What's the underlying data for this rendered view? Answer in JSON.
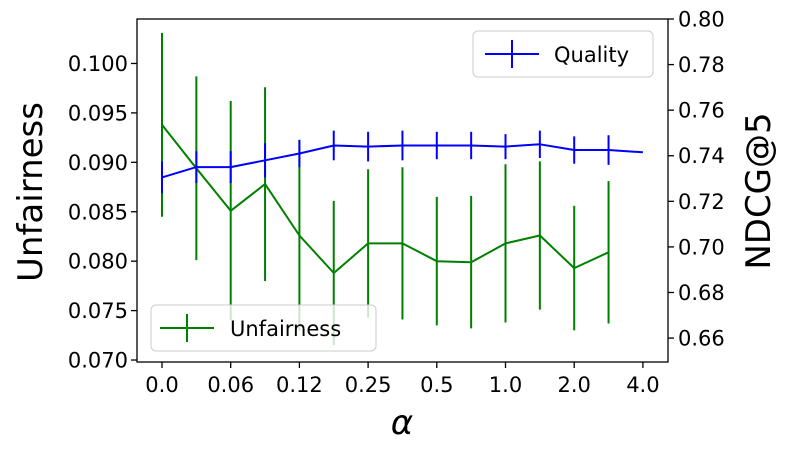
{
  "chart_data": {
    "type": "line",
    "x_categories": [
      "0.0",
      "",
      "0.06",
      "",
      "0.12",
      "",
      "0.25",
      "",
      "0.5",
      "",
      "1.0",
      "",
      "2.0",
      "",
      "4.0"
    ],
    "xlabel": "α",
    "ylabel_left": "Unfairness",
    "ylabel_right": "NDCG@5",
    "ylim_left": [
      0.0698,
      0.1045
    ],
    "ylim_right": [
      0.6495,
      0.8
    ],
    "yticks_left": [
      "0.070",
      "0.075",
      "0.080",
      "0.085",
      "0.090",
      "0.095",
      "0.100"
    ],
    "yticks_left_values": [
      0.07,
      0.075,
      0.08,
      0.085,
      0.09,
      0.095,
      0.1
    ],
    "yticks_right": [
      "0.66",
      "0.68",
      "0.70",
      "0.72",
      "0.74",
      "0.76",
      "0.78",
      "0.80"
    ],
    "yticks_right_values": [
      0.66,
      0.68,
      0.7,
      0.72,
      0.74,
      0.76,
      0.78,
      0.8
    ],
    "grid": false,
    "series": [
      {
        "name": "Unfairness",
        "axis": "left",
        "color": "#008000",
        "legend_position": "lower-left",
        "values": [
          0.0938,
          0.0894,
          0.0851,
          0.0878,
          0.0826,
          0.0788,
          0.0818,
          0.0818,
          0.08,
          0.0799,
          0.0818,
          0.0826,
          0.0793,
          0.0809,
          null
        ],
        "errors": [
          0.0093,
          0.0093,
          0.0111,
          0.0098,
          0.0096,
          0.0073,
          0.0075,
          0.0077,
          0.0065,
          0.0067,
          0.008,
          0.0075,
          0.0063,
          0.0072,
          null
        ]
      },
      {
        "name": "Quality",
        "axis": "right",
        "color": "#0000ff",
        "legend_position": "upper-right",
        "values": [
          0.7305,
          0.735,
          0.735,
          0.738,
          0.741,
          0.7445,
          0.744,
          0.7445,
          0.7445,
          0.7445,
          0.744,
          0.745,
          0.7425,
          0.7425,
          0.7415
        ],
        "errors": [
          0.007,
          0.007,
          0.007,
          0.0075,
          0.006,
          0.0065,
          0.0065,
          0.0065,
          0.006,
          0.006,
          0.0055,
          0.006,
          0.006,
          0.0065,
          null
        ]
      }
    ]
  }
}
